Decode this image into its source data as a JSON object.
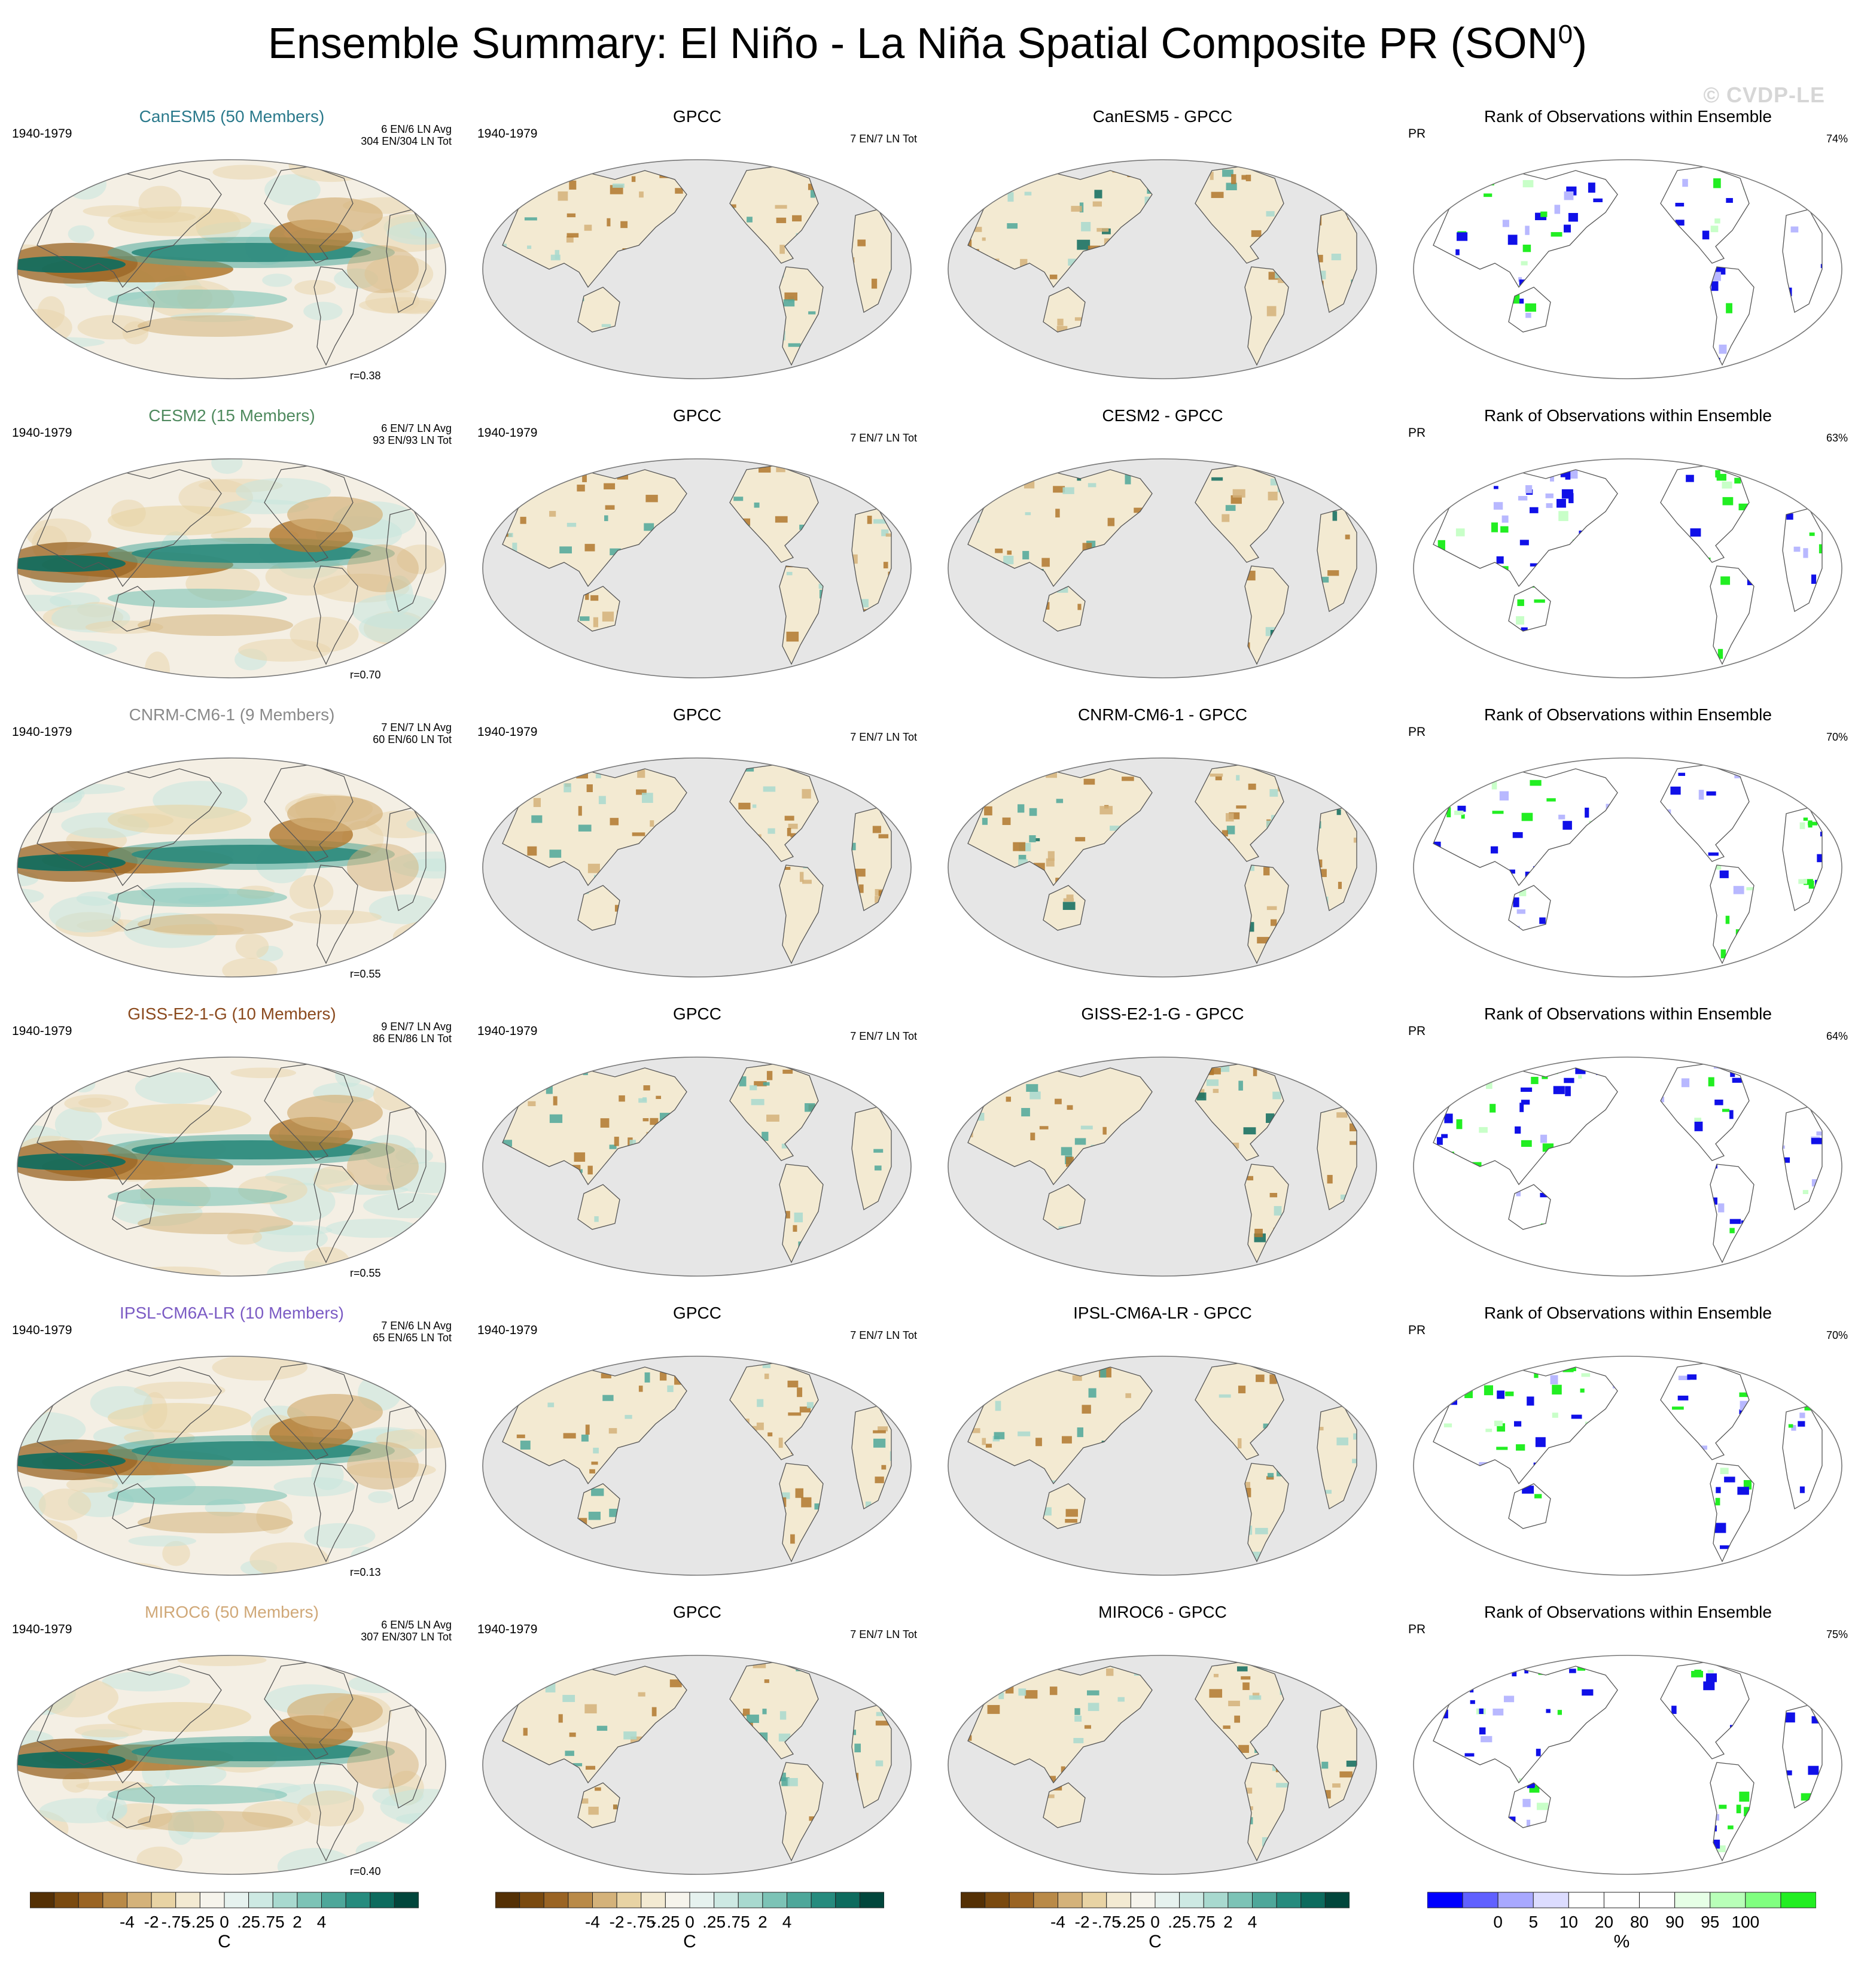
{
  "figure": {
    "title": "Ensemble Summary: El Niño - La Niña Spatial Composite PR (SON",
    "title_superscript": "0",
    "title_close": ")",
    "watermark": "© CVDP-LE"
  },
  "rows": [
    {
      "model": "CanESM5 (50 Members)",
      "model_short": "CanESM5",
      "model_color": "#2b7a8c",
      "period": "1940-1979",
      "counts_avg": "6 EN/6 LN Avg",
      "counts_tot": "304 EN/304 LN Tot",
      "r": "r=0.38",
      "obs_title": "GPCC",
      "obs_counts": "7 EN/7 LN Tot",
      "diff_title": "CanESM5 - GPCC",
      "rank_title": "Rank of Observations within Ensemble",
      "rank_var": "PR",
      "rank_pct": "74%"
    },
    {
      "model": "CESM2 (15 Members)",
      "model_short": "CESM2",
      "model_color": "#4f8a5e",
      "period": "1940-1979",
      "counts_avg": "6 EN/7 LN Avg",
      "counts_tot": "93 EN/93 LN Tot",
      "r": "r=0.70",
      "obs_title": "GPCC",
      "obs_counts": "7 EN/7 LN Tot",
      "diff_title": "CESM2 - GPCC",
      "rank_title": "Rank of Observations within Ensemble",
      "rank_var": "PR",
      "rank_pct": "63%"
    },
    {
      "model": "CNRM-CM6-1 (9 Members)",
      "model_short": "CNRM-CM6-1",
      "model_color": "#8a8a8a",
      "period": "1940-1979",
      "counts_avg": "7 EN/7 LN Avg",
      "counts_tot": "60 EN/60 LN Tot",
      "r": "r=0.55",
      "obs_title": "GPCC",
      "obs_counts": "7 EN/7 LN Tot",
      "diff_title": "CNRM-CM6-1 - GPCC",
      "rank_title": "Rank of Observations within Ensemble",
      "rank_var": "PR",
      "rank_pct": "70%"
    },
    {
      "model": "GISS-E2-1-G (10 Members)",
      "model_short": "GISS-E2-1-G",
      "model_color": "#8b4a1e",
      "period": "1940-1979",
      "counts_avg": "9 EN/7 LN Avg",
      "counts_tot": "86 EN/86 LN Tot",
      "r": "r=0.55",
      "obs_title": "GPCC",
      "obs_counts": "7 EN/7 LN Tot",
      "diff_title": "GISS-E2-1-G - GPCC",
      "rank_title": "Rank of Observations within Ensemble",
      "rank_var": "PR",
      "rank_pct": "64%"
    },
    {
      "model": "IPSL-CM6A-LR (10 Members)",
      "model_short": "IPSL-CM6A-LR",
      "model_color": "#7b5bc4",
      "period": "1940-1979",
      "counts_avg": "7 EN/6 LN Avg",
      "counts_tot": "65 EN/65 LN Tot",
      "r": "r=0.13",
      "obs_title": "GPCC",
      "obs_counts": "7 EN/7 LN Tot",
      "diff_title": "IPSL-CM6A-LR - GPCC",
      "rank_title": "Rank of Observations within Ensemble",
      "rank_var": "PR",
      "rank_pct": "70%"
    },
    {
      "model": "MIROC6 (50 Members)",
      "model_short": "MIROC6",
      "model_color": "#d0a878",
      "period": "1940-1979",
      "counts_avg": "6 EN/5 LN Avg",
      "counts_tot": "307 EN/307 LN Tot",
      "r": "r=0.40",
      "obs_title": "GPCC",
      "obs_counts": "7 EN/7 LN Tot",
      "diff_title": "MIROC6 - GPCC",
      "rank_title": "Rank of Observations within Ensemble",
      "rank_var": "PR",
      "rank_pct": "75%"
    }
  ],
  "colorbars": [
    {
      "unit": "C",
      "ticks": [
        "-4",
        "-2",
        "-.75",
        "-.25",
        "0",
        ".25",
        ".75",
        "2",
        "4"
      ],
      "colors": [
        "#543005",
        "#7a4a10",
        "#9a6424",
        "#b98a48",
        "#d4b27a",
        "#e8d3a4",
        "#f3ead2",
        "#f6f4ec",
        "#e6f2ef",
        "#cde9e3",
        "#a8d9cf",
        "#7cc3b6",
        "#4ea79a",
        "#268b7e",
        "#0d6b5e",
        "#01463c"
      ]
    },
    {
      "unit": "C",
      "ticks": [
        "-4",
        "-2",
        "-.75",
        "-.25",
        "0",
        ".25",
        ".75",
        "2",
        "4"
      ],
      "colors": [
        "#543005",
        "#7a4a10",
        "#9a6424",
        "#b98a48",
        "#d4b27a",
        "#e8d3a4",
        "#f3ead2",
        "#f6f4ec",
        "#e6f2ef",
        "#cde9e3",
        "#a8d9cf",
        "#7cc3b6",
        "#4ea79a",
        "#268b7e",
        "#0d6b5e",
        "#01463c"
      ]
    },
    {
      "unit": "C",
      "ticks": [
        "-4",
        "-2",
        "-.75",
        "-.25",
        "0",
        ".25",
        ".75",
        "2",
        "4"
      ],
      "colors": [
        "#543005",
        "#7a4a10",
        "#9a6424",
        "#b98a48",
        "#d4b27a",
        "#e8d3a4",
        "#f3ead2",
        "#f6f4ec",
        "#e6f2ef",
        "#cde9e3",
        "#a8d9cf",
        "#7cc3b6",
        "#4ea79a",
        "#268b7e",
        "#0d6b5e",
        "#01463c"
      ]
    },
    {
      "unit": "%",
      "ticks": [
        "0",
        "5",
        "10",
        "20",
        "80",
        "90",
        "95",
        "100"
      ],
      "colors": [
        "#0000ff",
        "#6060ff",
        "#a8a8ff",
        "#dcdcff",
        "#ffffff",
        "#ffffff",
        "#ffffff",
        "#e6ffe6",
        "#b8ffb8",
        "#80ff80",
        "#22ee22"
      ]
    }
  ],
  "palette": {
    "brown": "#8c5a1c",
    "teal": "#11706a",
    "land_gray": "#e6e6e6",
    "rank_low": "#1010e8",
    "rank_high": "#22ee22"
  }
}
